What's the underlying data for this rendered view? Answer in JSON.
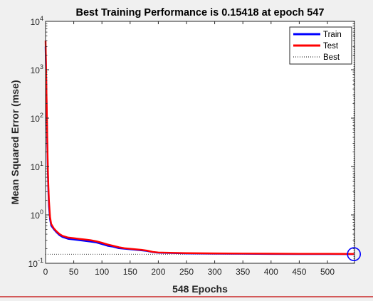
{
  "chart_data": {
    "type": "line",
    "title": "Best Training Performance is 0.15418 at epoch 547",
    "xlabel": "548 Epochs",
    "ylabel": "Mean Squared Error  (mse)",
    "xlim": [
      0,
      548
    ],
    "ylim": [
      0.1,
      10000
    ],
    "yscale": "log",
    "x_ticks": [
      "0",
      "50",
      "100",
      "150",
      "200",
      "250",
      "300",
      "350",
      "400",
      "450",
      "500"
    ],
    "y_ticks": [
      {
        "base": "10",
        "exp": "-1"
      },
      {
        "base": "10",
        "exp": "0"
      },
      {
        "base": "10",
        "exp": "1"
      },
      {
        "base": "10",
        "exp": "2"
      },
      {
        "base": "10",
        "exp": "3"
      },
      {
        "base": "10",
        "exp": "4"
      }
    ],
    "legend_position": "top-right",
    "series": [
      {
        "name": "Train",
        "color": "#0000ff",
        "x": [
          0,
          1,
          2,
          3,
          4,
          5,
          6,
          8,
          10,
          15,
          20,
          25,
          30,
          40,
          50,
          60,
          70,
          80,
          90,
          100,
          110,
          120,
          130,
          140,
          150,
          160,
          170,
          180,
          190,
          200,
          220,
          250,
          300,
          350,
          400,
          450,
          500,
          547
        ],
        "y": [
          3000,
          800,
          150,
          30,
          8,
          3,
          1.5,
          0.8,
          0.6,
          0.5,
          0.43,
          0.38,
          0.35,
          0.32,
          0.31,
          0.3,
          0.29,
          0.28,
          0.27,
          0.25,
          0.23,
          0.22,
          0.205,
          0.2,
          0.195,
          0.19,
          0.185,
          0.18,
          0.17,
          0.165,
          0.163,
          0.16,
          0.158,
          0.157,
          0.156,
          0.155,
          0.155,
          0.15418
        ]
      },
      {
        "name": "Test",
        "color": "#ff0000",
        "x": [
          0,
          1,
          2,
          3,
          4,
          5,
          6,
          8,
          10,
          15,
          20,
          25,
          30,
          40,
          50,
          60,
          70,
          80,
          90,
          100,
          110,
          120,
          130,
          140,
          150,
          160,
          170,
          180,
          190,
          200,
          220,
          250,
          300,
          350,
          400,
          450,
          500,
          547
        ],
        "y": [
          4000,
          1000,
          200,
          40,
          10,
          4,
          2,
          0.9,
          0.65,
          0.52,
          0.45,
          0.4,
          0.37,
          0.34,
          0.33,
          0.32,
          0.31,
          0.3,
          0.285,
          0.265,
          0.245,
          0.23,
          0.215,
          0.205,
          0.2,
          0.195,
          0.19,
          0.183,
          0.172,
          0.167,
          0.165,
          0.162,
          0.16,
          0.159,
          0.158,
          0.157,
          0.157,
          0.156
        ]
      }
    ],
    "best": {
      "name": "Best",
      "epoch": 547,
      "value": 0.15418,
      "color": "#000000"
    }
  }
}
